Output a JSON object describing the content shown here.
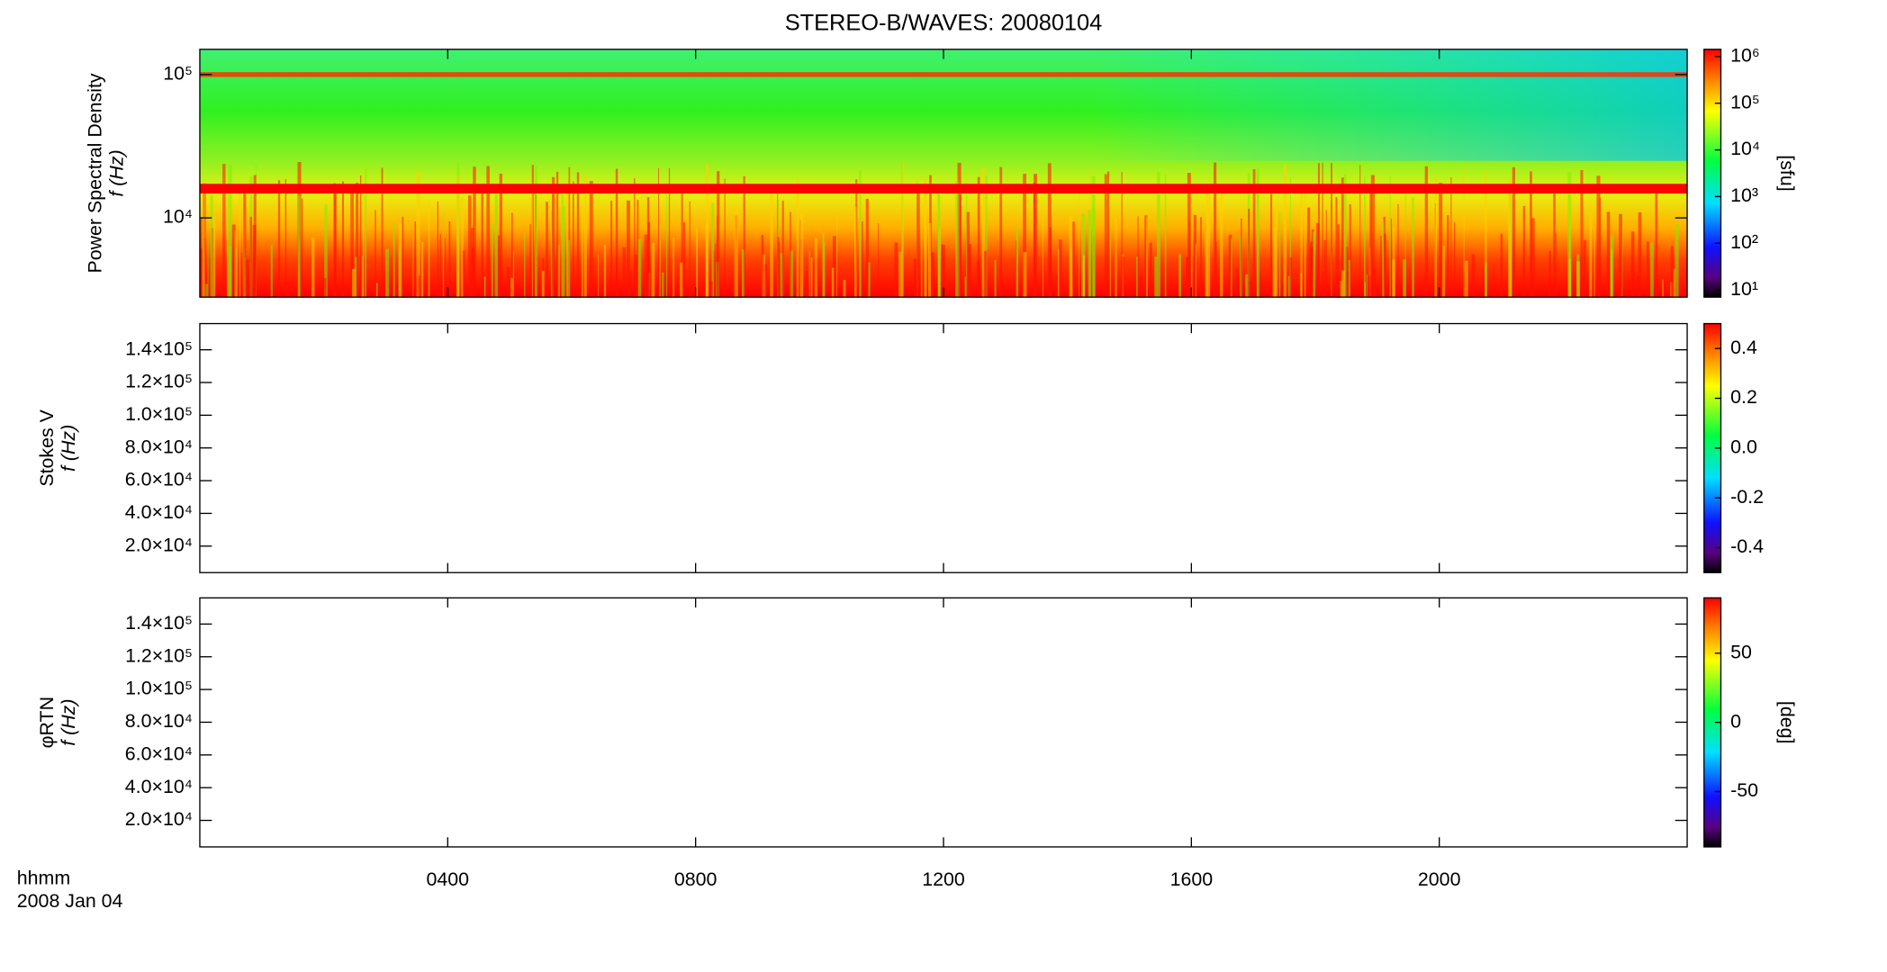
{
  "chart_data": {
    "type": "spectrogram",
    "title": "STEREO-B/WAVES: 20080104",
    "xlim": [
      0,
      24
    ],
    "xticks": [
      {
        "value": 4,
        "label": "0400"
      },
      {
        "value": 8,
        "label": "0800"
      },
      {
        "value": 12,
        "label": "1200"
      },
      {
        "value": 16,
        "label": "1600"
      },
      {
        "value": 20,
        "label": "2000"
      }
    ],
    "x_label": "hhmm",
    "date_label": "2008 Jan 04",
    "panels": [
      {
        "ylabel": [
          "Power Spectral Density",
          "f (Hz)"
        ],
        "log": true,
        "ylim": [
          2800,
          150000
        ],
        "yticks": [
          {
            "value": 10000,
            "label": "10⁴"
          },
          {
            "value": 100000,
            "label": "10⁵"
          }
        ],
        "clim": [
          7,
          1430000
        ],
        "clog": true,
        "cticks": [
          {
            "value": 10,
            "label": "10¹"
          },
          {
            "value": 100,
            "label": "10²"
          },
          {
            "value": 1000,
            "label": "10³"
          },
          {
            "value": 10000,
            "label": "10⁴"
          },
          {
            "value": 100000,
            "label": "10⁵"
          },
          {
            "value": 1000000,
            "label": "10⁶"
          }
        ],
        "cunit": "[sfu]"
      },
      {
        "ylabel": [
          "Stokes V",
          "f (Hz)"
        ],
        "log": false,
        "ylim": [
          3800,
          156000
        ],
        "yticks": [
          {
            "value": 20000,
            "label": "2.0×10⁴"
          },
          {
            "value": 40000,
            "label": "4.0×10⁴"
          },
          {
            "value": 60000,
            "label": "6.0×10⁴"
          },
          {
            "value": 80000,
            "label": "8.0×10⁴"
          },
          {
            "value": 100000,
            "label": "1.0×10⁵"
          },
          {
            "value": 120000,
            "label": "1.2×10⁵"
          },
          {
            "value": 140000,
            "label": "1.4×10⁵"
          }
        ],
        "clim": [
          -0.5,
          0.5
        ],
        "clog": false,
        "cticks": [
          -0.4,
          -0.2,
          {
            "value": 0,
            "label": "0.0"
          },
          0.2,
          0.4
        ]
      },
      {
        "ylabel": [
          "φRTN",
          "f (Hz)"
        ],
        "log": false,
        "ylim": [
          3800,
          156000
        ],
        "yticks": [
          {
            "value": 20000,
            "label": "2.0×10⁴"
          },
          {
            "value": 40000,
            "label": "4.0×10⁴"
          },
          {
            "value": 60000,
            "label": "6.0×10⁴"
          },
          {
            "value": 80000,
            "label": "8.0×10⁴"
          },
          {
            "value": 100000,
            "label": "1.0×10⁵"
          },
          {
            "value": 120000,
            "label": "1.2×10⁵"
          },
          {
            "value": 140000,
            "label": "1.4×10⁵"
          }
        ],
        "clim": [
          -90,
          90
        ],
        "clog": false,
        "cticks": [
          -50,
          0,
          50
        ],
        "cunit": "[deg]"
      }
    ]
  }
}
